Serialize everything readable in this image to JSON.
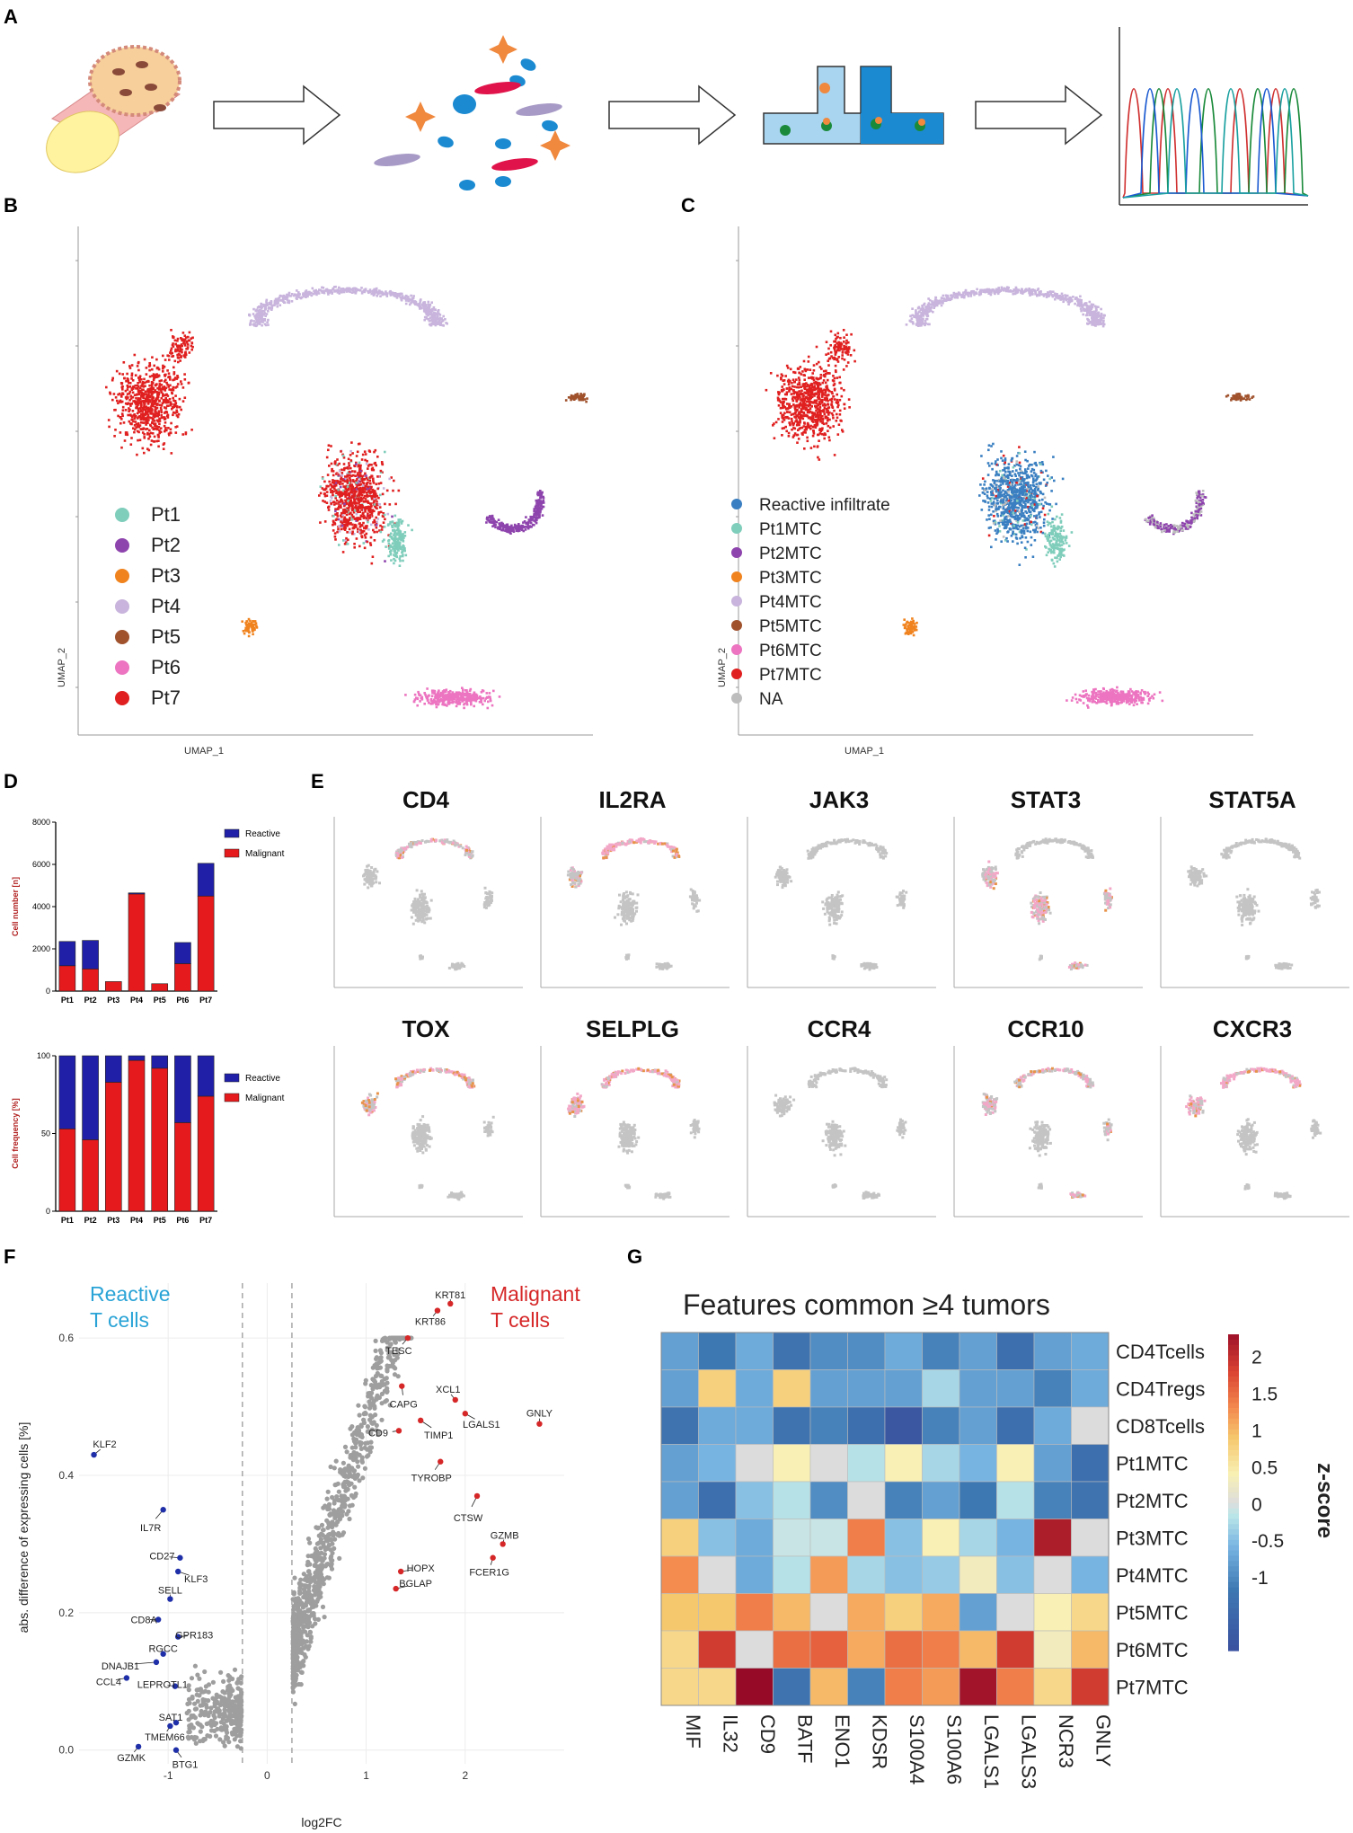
{
  "figure": {
    "panels": {
      "A": "A",
      "B": "B",
      "C": "C",
      "D": "D",
      "E": "E",
      "F": "F",
      "G": "G"
    },
    "umap_axis": {
      "x": "UMAP_1",
      "y": "UMAP_2"
    },
    "cluster_colors": {
      "Pt1": "#7fcdbb",
      "Pt2": "#8e44ad",
      "Pt3": "#f0831e",
      "Pt4": "#c8b4dc",
      "Pt5": "#a0522d",
      "Pt6": "#ec74c0",
      "Pt7": "#e02020",
      "Reactive": "#3a7fc1",
      "NA": "#bdbdbd"
    },
    "panel_b": {
      "legend": [
        "Pt1",
        "Pt2",
        "Pt3",
        "Pt4",
        "Pt5",
        "Pt6",
        "Pt7"
      ]
    },
    "panel_c": {
      "legend": [
        "Reactive infiltrate",
        "Pt1MTC",
        "Pt2MTC",
        "Pt3MTC",
        "Pt4MTC",
        "Pt5MTC",
        "Pt6MTC",
        "Pt7MTC",
        "NA"
      ]
    },
    "panel_e": {
      "genes": [
        "CD4",
        "IL2RA",
        "JAK3",
        "STAT3",
        "STAT5A",
        "TOX",
        "SELPLG",
        "CCR4",
        "CCR10",
        "CXCR3"
      ]
    },
    "panel_g_title": "Features common ≥4 tumors"
  },
  "chart_data": [
    {
      "id": "D_top",
      "type": "bar",
      "categories": [
        "Pt1",
        "Pt2",
        "Pt3",
        "Pt4",
        "Pt5",
        "Pt6",
        "Pt7"
      ],
      "series": [
        {
          "name": "Malignant",
          "values": [
            1200,
            1050,
            450,
            4600,
            350,
            1300,
            4500
          ],
          "color": "#e41a1c"
        },
        {
          "name": "Reactive",
          "values": [
            1150,
            1350,
            0,
            50,
            0,
            1000,
            1550
          ],
          "color": "#1f1fa8"
        }
      ],
      "ylabel": "Cell number [n]",
      "ylim": [
        0,
        8000
      ],
      "yticks": [
        "0",
        "2000",
        "4000",
        "6000",
        "8000"
      ],
      "legend": [
        "Reactive",
        "Malignant"
      ]
    },
    {
      "id": "D_bottom",
      "type": "bar",
      "categories": [
        "Pt1",
        "Pt2",
        "Pt3",
        "Pt4",
        "Pt5",
        "Pt6",
        "Pt7"
      ],
      "series": [
        {
          "name": "Malignant",
          "values": [
            53,
            46,
            83,
            97,
            92,
            57,
            74
          ],
          "color": "#e41a1c"
        },
        {
          "name": "Reactive",
          "values": [
            47,
            54,
            17,
            3,
            8,
            43,
            26
          ],
          "color": "#1f1fa8"
        }
      ],
      "ylabel": "Cell frequency [%]",
      "ylim": [
        0,
        100
      ],
      "yticks": [
        "0",
        "50",
        "100"
      ],
      "legend": [
        "Reactive",
        "Malignant"
      ]
    },
    {
      "id": "F",
      "type": "scatter",
      "xlabel": "log2FC",
      "ylabel": "abs. difference of expressing cells [%]",
      "xlim": [
        -1.9,
        3.0
      ],
      "ylim": [
        -0.02,
        0.68
      ],
      "xticks": [
        "-1",
        "0",
        "1",
        "2"
      ],
      "yticks": [
        "0.0",
        "0.2",
        "0.4",
        "0.6"
      ],
      "thresholds": [
        -0.25,
        0.25
      ],
      "group_labels": {
        "reactive": "Reactive\nT cells",
        "malignant": "Malignant\nT cells",
        "reactive_color": "#29a3d6",
        "malignant_color": "#d62728"
      },
      "labeled_points": [
        {
          "gene": "KRT81",
          "x": 1.85,
          "y": 0.65,
          "side": "malignant"
        },
        {
          "gene": "KRT86",
          "x": 1.72,
          "y": 0.64,
          "side": "malignant"
        },
        {
          "gene": "TESC",
          "x": 1.42,
          "y": 0.6,
          "side": "malignant"
        },
        {
          "gene": "CAPG",
          "x": 1.36,
          "y": 0.53,
          "side": "malignant"
        },
        {
          "gene": "XCL1",
          "x": 1.9,
          "y": 0.51,
          "side": "malignant"
        },
        {
          "gene": "LGALS1",
          "x": 2.0,
          "y": 0.49,
          "side": "malignant"
        },
        {
          "gene": "GNLY",
          "x": 2.75,
          "y": 0.475,
          "side": "malignant"
        },
        {
          "gene": "CD9",
          "x": 1.33,
          "y": 0.465,
          "side": "malignant"
        },
        {
          "gene": "TIMP1",
          "x": 1.55,
          "y": 0.48,
          "side": "malignant"
        },
        {
          "gene": "TYROBP",
          "x": 1.75,
          "y": 0.42,
          "side": "malignant"
        },
        {
          "gene": "CTSW",
          "x": 2.12,
          "y": 0.37,
          "side": "malignant"
        },
        {
          "gene": "GZMB",
          "x": 2.38,
          "y": 0.3,
          "side": "malignant"
        },
        {
          "gene": "FCER1G",
          "x": 2.28,
          "y": 0.28,
          "side": "malignant"
        },
        {
          "gene": "HOPX",
          "x": 1.35,
          "y": 0.26,
          "side": "malignant"
        },
        {
          "gene": "BGLAP",
          "x": 1.3,
          "y": 0.235,
          "side": "malignant"
        },
        {
          "gene": "KLF2",
          "x": -1.75,
          "y": 0.43,
          "side": "reactive"
        },
        {
          "gene": "IL7R",
          "x": -1.05,
          "y": 0.35,
          "side": "reactive"
        },
        {
          "gene": "CD27",
          "x": -0.88,
          "y": 0.28,
          "side": "reactive"
        },
        {
          "gene": "KLF3",
          "x": -0.9,
          "y": 0.26,
          "side": "reactive"
        },
        {
          "gene": "SELL",
          "x": -0.98,
          "y": 0.22,
          "side": "reactive"
        },
        {
          "gene": "CD8A",
          "x": -1.1,
          "y": 0.19,
          "side": "reactive"
        },
        {
          "gene": "GPR183",
          "x": -0.9,
          "y": 0.165,
          "side": "reactive"
        },
        {
          "gene": "RGCC",
          "x": -1.05,
          "y": 0.14,
          "side": "reactive"
        },
        {
          "gene": "DNAJB1",
          "x": -1.12,
          "y": 0.128,
          "side": "reactive"
        },
        {
          "gene": "CCL4",
          "x": -1.42,
          "y": 0.105,
          "side": "reactive"
        },
        {
          "gene": "LEPROTL1",
          "x": -0.93,
          "y": 0.093,
          "side": "reactive"
        },
        {
          "gene": "SAT1",
          "x": -0.92,
          "y": 0.04,
          "side": "reactive"
        },
        {
          "gene": "TMEM66",
          "x": -0.98,
          "y": 0.035,
          "side": "reactive"
        },
        {
          "gene": "GZMK",
          "x": -1.3,
          "y": 0.005,
          "side": "reactive"
        },
        {
          "gene": "BTG1",
          "x": -0.92,
          "y": 0.0,
          "side": "reactive"
        }
      ]
    },
    {
      "id": "G",
      "type": "heatmap",
      "title": "Features common ≥4 tumors",
      "rows": [
        "CD4Tcells",
        "CD4Tregs",
        "CD8Tcells",
        "Pt1MTC",
        "Pt2MTC",
        "Pt3MTC",
        "Pt4MTC",
        "Pt5MTC",
        "Pt6MTC",
        "Pt7MTC"
      ],
      "cols": [
        "MIF",
        "IL32",
        "CD9",
        "BATF",
        "ENO1",
        "KDSR",
        "S100A4",
        "S100A6",
        "LGALS1",
        "LGALS3",
        "NCR3",
        "GNLY"
      ],
      "values": [
        [
          -0.8,
          -1.2,
          -0.7,
          -1.3,
          -1.0,
          -1.0,
          -0.7,
          -1.1,
          -0.8,
          -1.4,
          -0.8,
          -0.7
        ],
        [
          -0.8,
          0.8,
          -0.7,
          0.8,
          -0.8,
          -0.8,
          -0.8,
          -0.3,
          -0.8,
          -0.8,
          -1.1,
          -0.7
        ],
        [
          -1.3,
          -0.7,
          -0.7,
          -1.3,
          -1.1,
          -1.4,
          -1.9,
          -1.1,
          -0.8,
          -1.4,
          -0.7,
          0.0
        ],
        [
          -0.8,
          -0.6,
          0.0,
          0.4,
          0.0,
          -0.2,
          0.4,
          -0.3,
          -0.6,
          0.4,
          -0.8,
          -1.4
        ],
        [
          -0.8,
          -1.4,
          -0.5,
          -0.2,
          -1.0,
          0.0,
          -1.1,
          -0.8,
          -1.2,
          -0.2,
          -1.1,
          -1.3
        ],
        [
          0.8,
          -0.5,
          -0.7,
          -0.1,
          -0.1,
          1.4,
          -0.5,
          0.4,
          -0.3,
          -0.6,
          2.2,
          0.0
        ],
        [
          1.3,
          0.0,
          -0.7,
          -0.2,
          1.2,
          -0.3,
          -0.5,
          -0.4,
          0.3,
          -0.5,
          0.0,
          -0.6
        ],
        [
          0.9,
          0.9,
          1.4,
          1.0,
          0.0,
          1.1,
          0.8,
          1.1,
          -0.8,
          0.0,
          0.4,
          0.7
        ],
        [
          0.7,
          1.9,
          0.0,
          1.5,
          1.6,
          1.1,
          1.5,
          1.4,
          1.0,
          1.9,
          0.3,
          1.0
        ],
        [
          0.7,
          0.7,
          2.4,
          -1.3,
          1.0,
          -1.1,
          1.4,
          1.2,
          2.3,
          1.4,
          0.7,
          1.9
        ]
      ],
      "colorbar": {
        "label": "z-score",
        "ticks": [
          "2",
          "1.5",
          "1",
          "0.5",
          "0",
          "-0.5",
          "-1"
        ],
        "range": [
          -2,
          2.3
        ]
      }
    }
  ]
}
